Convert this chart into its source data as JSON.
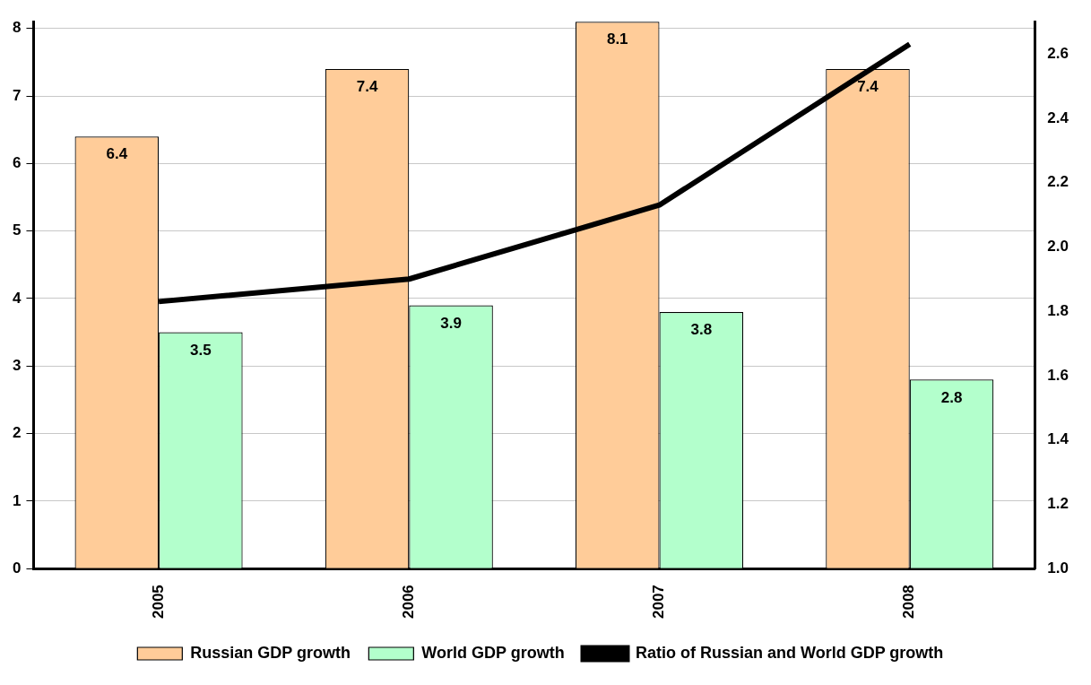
{
  "chart_data": {
    "type": "bar",
    "categories": [
      "2005",
      "2006",
      "2007",
      "2008"
    ],
    "series": [
      {
        "name": "Russian GDP growth",
        "color": "#ffcc99",
        "values": [
          6.4,
          7.4,
          8.1,
          7.4
        ],
        "value_labels": [
          "6.4",
          "7.4",
          "8.1",
          "7.4"
        ]
      },
      {
        "name": "World GDP growth",
        "color": "#b3ffcc",
        "values": [
          3.5,
          3.9,
          3.8,
          2.8
        ],
        "value_labels": [
          "3.5",
          "3.9",
          "3.8",
          "2.8"
        ]
      },
      {
        "name": "Ratio of Russian and World GDP growth",
        "type": "line",
        "axis": "y2",
        "color": "#000000",
        "values": [
          1.83,
          1.9,
          2.13,
          2.63
        ]
      }
    ],
    "ylim": [
      0,
      8.1
    ],
    "yticks": [
      0,
      1,
      2,
      3,
      4,
      5,
      6,
      7,
      8
    ],
    "y2lim": [
      1.0,
      2.7
    ],
    "y2ticks": [
      {
        "value": 1.0,
        "label": "1.0"
      },
      {
        "value": 1.2,
        "label": "1.2"
      },
      {
        "value": 1.4,
        "label": "1.4"
      },
      {
        "value": 1.6,
        "label": "1.6"
      },
      {
        "value": 1.8,
        "label": "1.8"
      },
      {
        "value": 2.0,
        "label": "2.0"
      },
      {
        "value": 2.2,
        "label": "2.2"
      },
      {
        "value": 2.4,
        "label": "2.4"
      },
      {
        "value": 2.6,
        "label": "2.6"
      }
    ],
    "grid": "y",
    "legend": "bottom",
    "marker": "none",
    "line_style": "solid"
  }
}
